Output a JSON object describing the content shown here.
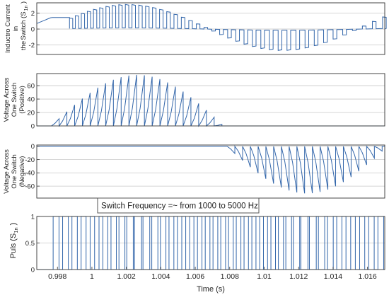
{
  "chart_data": {
    "type": "line",
    "xlabel": "Time (s)",
    "xlim": [
      0.9968,
      1.017
    ],
    "xticks": [
      "0.998",
      "1",
      "1.002",
      "1.004",
      "1.006",
      "1.008",
      "1.01",
      "1.012",
      "1.014",
      "1.016"
    ],
    "annotation": "Switch Frequency =~ from 1000 to 5000 Hz",
    "line_color": "#3366aa",
    "grid": "horizontal",
    "panels": [
      {
        "id": "current",
        "ylabel_lines": [
          "Inductro Current",
          "in",
          "Switch (S",
          "the",
          "1n",
          ")"
        ],
        "ylim": [
          -3.2,
          3.3
        ],
        "yticks": [
          2,
          0,
          -2
        ],
        "switch_start": 0.9987,
        "switch_end": 1.0169,
        "period_start": 0.00034,
        "period_end": 0.0006,
        "duty_start": 0.55,
        "duty_end": 0.35
      },
      {
        "id": "vpos",
        "ylabel_lines": [
          "Voltage Across",
          "One Switch",
          "(Positive)"
        ],
        "ylim": [
          0,
          78
        ],
        "yticks": [
          60,
          40,
          20,
          0
        ],
        "peak": 76,
        "active_from": 0.9974,
        "active_to": 1.0074
      },
      {
        "id": "vneg",
        "ylabel_lines": [
          "Voltage Across",
          "One Switch",
          "(Negative)"
        ],
        "ylim": [
          -78,
          2
        ],
        "yticks": [
          0,
          -20,
          -40,
          -60
        ],
        "peak": -71,
        "active_from": 1.0076,
        "active_to": 1.0169
      },
      {
        "id": "puls",
        "ylabel_lines": [
          "Puls (S",
          "1n",
          ")"
        ],
        "ylim": [
          0,
          1
        ],
        "yticks": [
          1,
          0.5,
          0
        ]
      }
    ]
  }
}
